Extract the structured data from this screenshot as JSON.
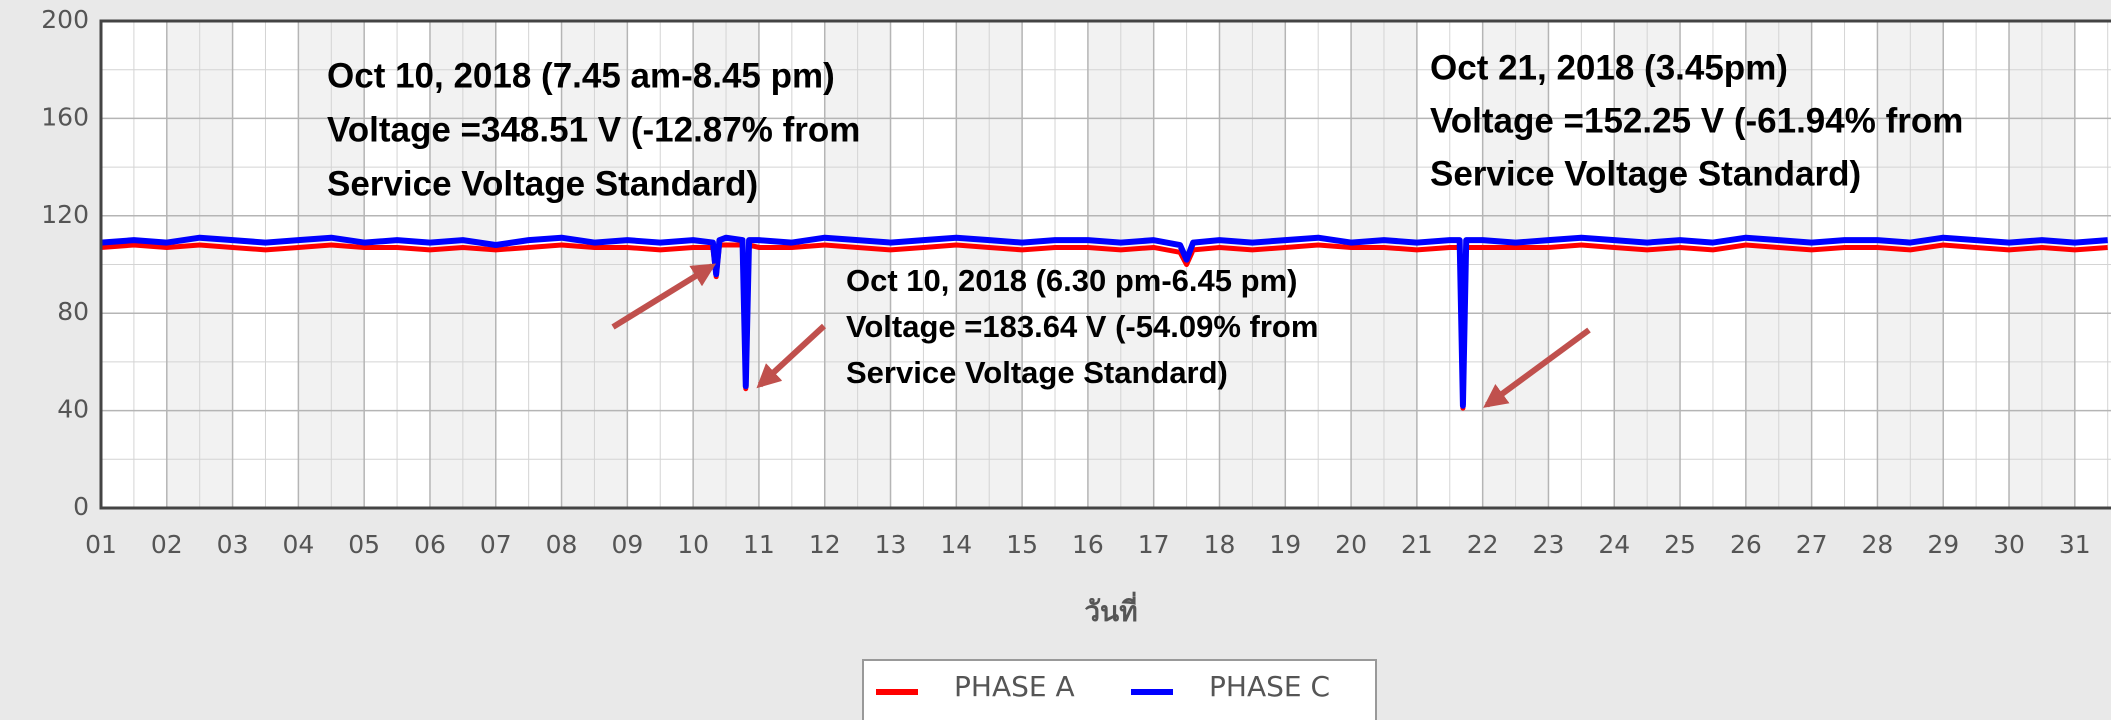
{
  "chart_data": {
    "type": "line",
    "x_label": "วันที่",
    "x": [
      1,
      1.5,
      2,
      2.5,
      3,
      3.5,
      4,
      4.5,
      5,
      5.5,
      6,
      6.5,
      7,
      7.5,
      8,
      8.5,
      9,
      9.5,
      10,
      10.3,
      10.35,
      10.4,
      10.5,
      10.75,
      10.8,
      10.85,
      11,
      11.5,
      12,
      12.5,
      13,
      13.5,
      14,
      14.5,
      15,
      15.5,
      16,
      16.5,
      17,
      17.4,
      17.5,
      17.6,
      18,
      18.5,
      19,
      19.5,
      20,
      20.5,
      21,
      21.5,
      21.65,
      21.7,
      21.75,
      22,
      22.5,
      23,
      23.5,
      24,
      24.5,
      25,
      25.5,
      26,
      26.5,
      27,
      27.5,
      28,
      28.5,
      29,
      29.5,
      30,
      30.5,
      31,
      31.5
    ],
    "series": [
      {
        "name": "PHASE A",
        "color": "#ff0000",
        "values": [
          107,
          108,
          107,
          108,
          107,
          106,
          107,
          108,
          107,
          107,
          106,
          107,
          106,
          107,
          108,
          107,
          107,
          106,
          107,
          107,
          95,
          108,
          108,
          108,
          49,
          108,
          107,
          107,
          108,
          107,
          106,
          107,
          108,
          107,
          106,
          107,
          107,
          106,
          107,
          105,
          100,
          106,
          107,
          106,
          107,
          108,
          107,
          107,
          106,
          107,
          107,
          41,
          107,
          107,
          107,
          107,
          108,
          107,
          106,
          107,
          106,
          108,
          107,
          106,
          107,
          107,
          106,
          108,
          107,
          106,
          107,
          106,
          107
        ]
      },
      {
        "name": "PHASE C",
        "color": "#0000ff",
        "values": [
          109,
          110,
          109,
          111,
          110,
          109,
          110,
          111,
          109,
          110,
          109,
          110,
          108,
          110,
          111,
          109,
          110,
          109,
          110,
          109,
          96,
          110,
          111,
          110,
          50,
          110,
          110,
          109,
          111,
          110,
          109,
          110,
          111,
          110,
          109,
          110,
          110,
          109,
          110,
          108,
          102,
          109,
          110,
          109,
          110,
          111,
          109,
          110,
          109,
          110,
          110,
          42,
          110,
          110,
          109,
          110,
          111,
          110,
          109,
          110,
          109,
          111,
          110,
          109,
          110,
          110,
          109,
          111,
          110,
          109,
          110,
          109,
          110
        ]
      }
    ],
    "xlim": [
      1,
      31.55
    ],
    "xticks": [
      {
        "value": 1,
        "label": "01"
      },
      {
        "value": 2,
        "label": "02"
      },
      {
        "value": 3,
        "label": "03"
      },
      {
        "value": 4,
        "label": "04"
      },
      {
        "value": 5,
        "label": "05"
      },
      {
        "value": 6,
        "label": "06"
      },
      {
        "value": 7,
        "label": "07"
      },
      {
        "value": 8,
        "label": "08"
      },
      {
        "value": 9,
        "label": "09"
      },
      10,
      11,
      12,
      13,
      14,
      15,
      16,
      17,
      18,
      19,
      20,
      21,
      22,
      23,
      24,
      25,
      26,
      27,
      28,
      29,
      30,
      31
    ],
    "ylim": [
      0,
      200
    ],
    "yticks": [
      0,
      40,
      80,
      120,
      160,
      200
    ],
    "grid": true,
    "annotations": [
      {
        "lines": [
          "Oct 10, 2018 (7.45 am-8.45 pm)",
          "Voltage =348.51 V (-12.87% from",
          "Service Voltage Standard)"
        ]
      },
      {
        "lines": [
          "Oct 10, 2018 (6.30 pm-6.45 pm)",
          "Voltage =183.64 V (-54.09% from",
          "Service Voltage Standard)"
        ]
      },
      {
        "lines": [
          "Oct 21, 2018 (3.45pm)",
          "Voltage =152.25 V (-61.94% from",
          "Service Voltage Standard)"
        ]
      }
    ]
  }
}
